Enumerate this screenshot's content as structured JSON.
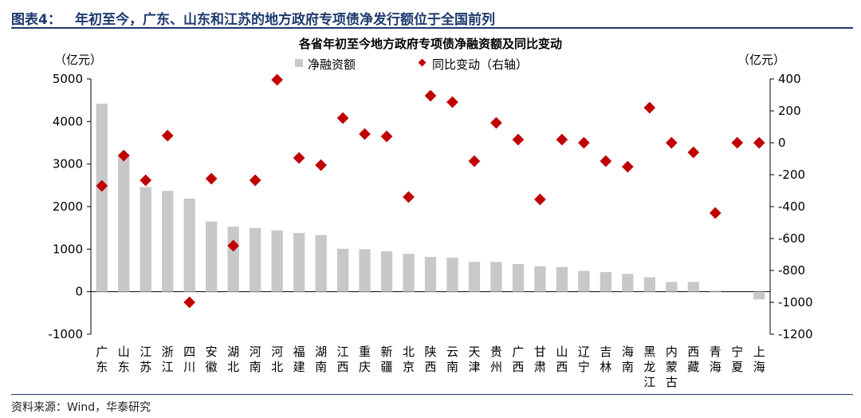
{
  "header": {
    "label": "图表4：",
    "title": "年初至今，广东、山东和江苏的地方政府专项债净发行额位于全国前列"
  },
  "source": "资料来源：Wind，华泰研究",
  "colors": {
    "bar": "#c8c8c8",
    "marker": "#c00000",
    "header": "#1e3a6e"
  },
  "chart_data": {
    "type": "bar",
    "title": "各省年初至今地方政府专项债净融资额及同比变动",
    "left_unit": "（亿元）",
    "right_unit": "（亿元）",
    "categories": [
      "广东",
      "山东",
      "江苏",
      "浙江",
      "四川",
      "安徽",
      "湖北",
      "河南",
      "河北",
      "福建",
      "湖南",
      "江西",
      "重庆",
      "新疆",
      "北京",
      "陕西",
      "云南",
      "天津",
      "贵州",
      "广西",
      "甘肃",
      "山西",
      "辽宁",
      "吉林",
      "海南",
      "黑龙江",
      "内蒙古",
      "西藏",
      "青海",
      "宁夏",
      "上海"
    ],
    "series": [
      {
        "name": "净融资额",
        "type": "bar",
        "axis": "left",
        "values": [
          4420,
          3240,
          2460,
          2370,
          2190,
          1650,
          1530,
          1500,
          1440,
          1380,
          1330,
          1010,
          1000,
          950,
          890,
          820,
          800,
          700,
          700,
          650,
          600,
          580,
          490,
          460,
          420,
          340,
          230,
          230,
          20,
          0,
          -180
        ]
      },
      {
        "name": "同比变动（右轴）",
        "type": "scatter",
        "axis": "right",
        "values": [
          -270,
          -80,
          -235,
          45,
          -1000,
          -225,
          -645,
          -235,
          395,
          -95,
          -140,
          155,
          55,
          40,
          -340,
          295,
          255,
          -115,
          125,
          20,
          -355,
          20,
          0,
          -115,
          -150,
          220,
          0,
          -60,
          -440,
          0,
          0
        ]
      }
    ],
    "left_axis": {
      "ylim": [
        -1000,
        5000
      ],
      "ticks": [
        "-1000",
        "0",
        "1000",
        "2000",
        "3000",
        "4000",
        "5000"
      ]
    },
    "right_axis": {
      "ylim": [
        -1200,
        400
      ],
      "ticks": [
        "-1200",
        "-1000",
        "-800",
        "-600",
        "-400",
        "-200",
        "0",
        "200",
        "400"
      ]
    },
    "legend_position": "top-center",
    "grid": false
  }
}
